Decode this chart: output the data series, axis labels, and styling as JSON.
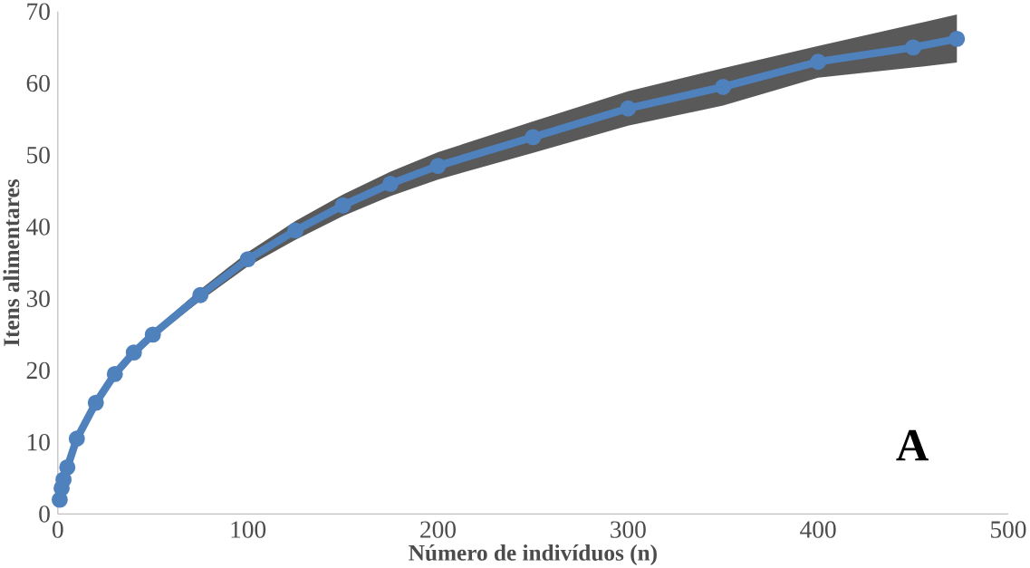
{
  "chart_data": {
    "type": "line",
    "xlabel": "Número de indivíduos (n)",
    "ylabel": "Itens alimentares",
    "annotations": [
      "A"
    ],
    "x": [
      1,
      2,
      3,
      5,
      10,
      20,
      30,
      40,
      50,
      75,
      100,
      125,
      150,
      175,
      200,
      250,
      300,
      350,
      400,
      450,
      473
    ],
    "series": [
      {
        "color": "#4f81bd",
        "values": [
          2,
          3.6,
          4.8,
          6.5,
          10.5,
          15.5,
          19.5,
          22.5,
          25,
          30.5,
          35.5,
          39.5,
          43,
          46,
          48.5,
          52.5,
          56.5,
          59.5,
          63,
          65,
          66.2
        ],
        "lower": [
          2,
          3.6,
          4.7,
          6.3,
          10.2,
          15.2,
          19.1,
          22,
          24.5,
          29.7,
          34.5,
          38.2,
          41.5,
          44.3,
          46.6,
          50.3,
          54.1,
          56.9,
          60.8,
          62.2,
          62.9
        ],
        "upper": [
          2,
          3.6,
          4.9,
          6.7,
          10.8,
          15.8,
          19.9,
          23,
          25.5,
          31.3,
          36.5,
          40.8,
          44.5,
          47.7,
          50.4,
          54.7,
          58.9,
          62.1,
          65.2,
          68.2,
          69.6
        ]
      }
    ],
    "xlim": [
      0,
      500
    ],
    "ylim": [
      0,
      70
    ],
    "xticks": [
      0,
      100,
      200,
      300,
      400,
      500
    ],
    "yticks": [
      0,
      10,
      20,
      30,
      40,
      50,
      60,
      70
    ],
    "grid": false,
    "legend": false,
    "marker": "circle"
  }
}
